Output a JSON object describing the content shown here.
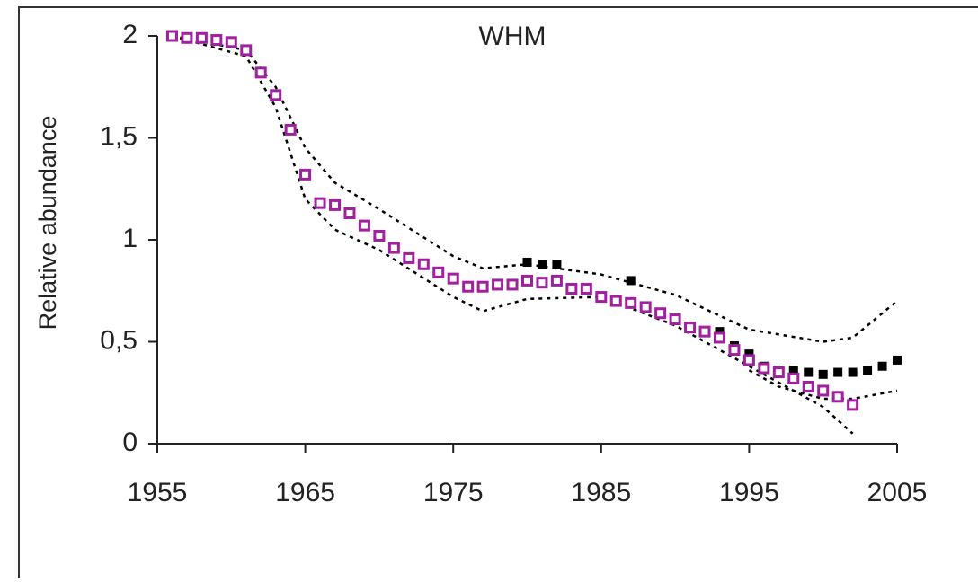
{
  "chart_data": {
    "type": "scatter",
    "title": "WHM",
    "ylabel": "Relative abundance",
    "xlim": [
      1955,
      2005
    ],
    "xticks": [
      1955,
      1965,
      1975,
      1985,
      1995,
      2005
    ],
    "ylim": [
      0,
      2
    ],
    "yticks": [
      0,
      {
        "value": 0.5,
        "label": "0,5"
      },
      1,
      {
        "value": 1.5,
        "label": "1,5"
      },
      2
    ],
    "series": [
      {
        "style": "dashed",
        "color": "#000000",
        "x": [
          1956,
          1961,
          1963,
          1965,
          1967,
          1970,
          1975,
          1977,
          1980,
          1985,
          1990,
          1995,
          2000,
          2002,
          2005
        ],
        "values": [
          2.0,
          1.93,
          1.75,
          1.45,
          1.28,
          1.15,
          0.92,
          0.86,
          0.88,
          0.83,
          0.73,
          0.56,
          0.5,
          0.52,
          0.7
        ]
      },
      {
        "style": "dashed",
        "color": "#000000",
        "x": [
          1956,
          1961,
          1963,
          1965,
          1967,
          1970,
          1975,
          1977,
          1980,
          1985,
          1990,
          1995,
          2000,
          2002
        ],
        "values": [
          2.0,
          1.9,
          1.65,
          1.2,
          1.05,
          0.95,
          0.72,
          0.65,
          0.71,
          0.72,
          0.58,
          0.38,
          0.18,
          0.05
        ]
      },
      {
        "style": "dashed",
        "color": "#000000",
        "x": [
          1995,
          1997,
          2000,
          2002,
          2005
        ],
        "values": [
          0.36,
          0.28,
          0.22,
          0.22,
          0.26
        ]
      },
      {
        "style": "filled-square",
        "color": "#000000",
        "x": [
          1980,
          1981,
          1982,
          1987,
          1993,
          1994,
          1995,
          1996,
          1997,
          1998,
          1999,
          2000,
          2001,
          2002,
          2003,
          2004,
          2005
        ],
        "values": [
          0.89,
          0.88,
          0.88,
          0.8,
          0.55,
          0.48,
          0.44,
          0.38,
          0.36,
          0.36,
          0.35,
          0.34,
          0.35,
          0.35,
          0.36,
          0.38,
          0.41
        ]
      },
      {
        "style": "open-square",
        "color": "#a020a0",
        "x": [
          1956,
          1957,
          1958,
          1959,
          1960,
          1961,
          1962,
          1963,
          1964,
          1965,
          1966,
          1967,
          1968,
          1969,
          1970,
          1971,
          1972,
          1973,
          1974,
          1975,
          1976,
          1977,
          1978,
          1979,
          1980,
          1981,
          1982,
          1983,
          1984,
          1985,
          1986,
          1987,
          1988,
          1989,
          1990,
          1991,
          1992,
          1993,
          1994,
          1995,
          1996,
          1997,
          1998,
          1999,
          2000,
          2001,
          2002
        ],
        "values": [
          2.0,
          1.99,
          1.99,
          1.98,
          1.97,
          1.93,
          1.82,
          1.71,
          1.54,
          1.32,
          1.18,
          1.17,
          1.13,
          1.07,
          1.02,
          0.96,
          0.91,
          0.88,
          0.84,
          0.81,
          0.77,
          0.77,
          0.78,
          0.78,
          0.8,
          0.79,
          0.8,
          0.76,
          0.76,
          0.72,
          0.7,
          0.69,
          0.67,
          0.64,
          0.61,
          0.57,
          0.55,
          0.52,
          0.46,
          0.41,
          0.37,
          0.35,
          0.32,
          0.28,
          0.26,
          0.23,
          0.19
        ]
      }
    ]
  }
}
